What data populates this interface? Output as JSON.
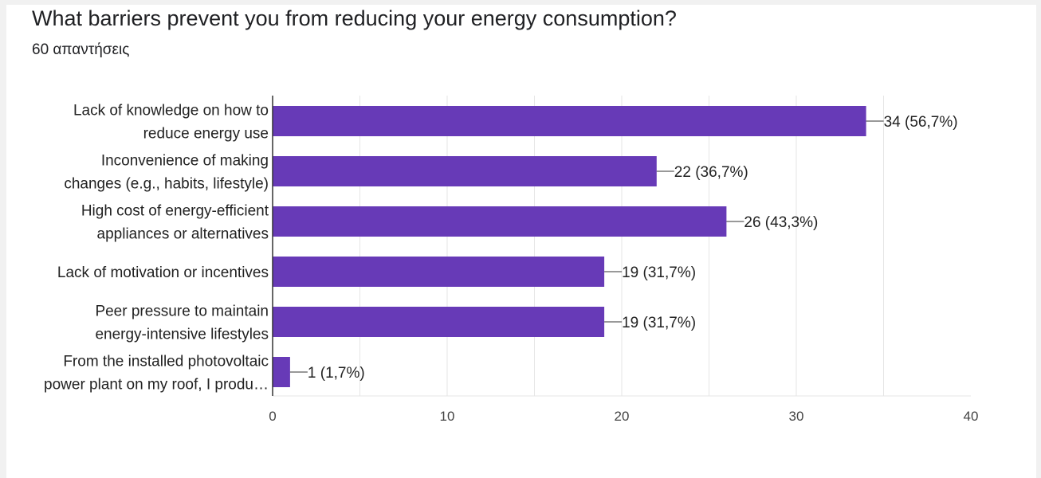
{
  "header": {
    "title": "What barriers prevent you from reducing your energy consumption?",
    "responses": "60 απαντήσεις"
  },
  "colors": {
    "bar": "#673ab7",
    "grid": "#e6e6e6",
    "axis": "#333333",
    "background": "#ffffff",
    "page": "#f1f1f1"
  },
  "chart_data": {
    "type": "bar",
    "orientation": "horizontal",
    "categories": [
      [
        "Lack of knowledge on how to",
        "reduce energy use"
      ],
      [
        "Inconvenience of making",
        "changes (e.g., habits, lifestyle)"
      ],
      [
        "High cost of energy-efficient",
        "appliances or alternatives"
      ],
      [
        "Lack of motivation or incentives"
      ],
      [
        "Peer pressure to maintain",
        "energy-intensive lifestyles"
      ],
      [
        "From the installed photovoltaic",
        "power plant on my roof, I produ…"
      ]
    ],
    "values": [
      34,
      22,
      26,
      19,
      19,
      1
    ],
    "data_labels": [
      "34 (56,7%)",
      "22 (36,7%)",
      "26 (43,3%)",
      "19 (31,7%)",
      "19 (31,7%)",
      "1 (1,7%)"
    ],
    "xlim": [
      0,
      40
    ],
    "xticks": [
      0,
      10,
      20,
      30,
      40
    ],
    "grid": true,
    "legend": "none"
  }
}
